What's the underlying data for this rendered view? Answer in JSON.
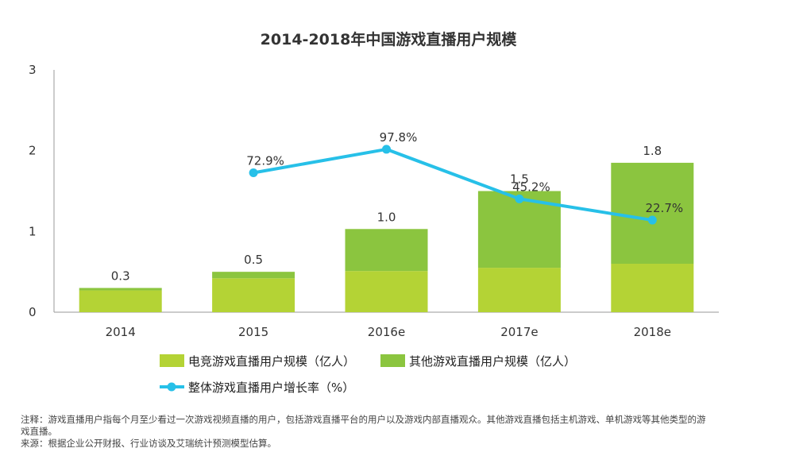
{
  "chart_data": {
    "type": "bar",
    "stacked": true,
    "title": "2014-2018年中国游戏直播用户规模",
    "categories": [
      "2014",
      "2015",
      "2016e",
      "2017e",
      "2018e"
    ],
    "ylim": [
      0,
      3
    ],
    "yticks": [
      "0",
      "1",
      "2",
      "3"
    ],
    "grid": false,
    "series": [
      {
        "name": "电竞游戏直播用户规模（亿人）",
        "type": "bar",
        "color": "#b4d335",
        "values": [
          0.27,
          0.42,
          0.51,
          0.55,
          0.6
        ]
      },
      {
        "name": "其他游戏直播用户规模（亿人）",
        "type": "bar",
        "color": "#8bc53f",
        "values": [
          0.03,
          0.08,
          0.52,
          0.95,
          1.25
        ]
      },
      {
        "name": "整体游戏直播用户增长率（%）",
        "type": "line",
        "color": "#27c0e8",
        "values": [
          null,
          72.9,
          97.8,
          45.2,
          22.7
        ],
        "labels": [
          null,
          "72.9%",
          "97.8%",
          "45.2%",
          "22.7%"
        ]
      }
    ],
    "total_labels": [
      "0.3",
      "0.5",
      "1.0",
      "1.5",
      "1.8"
    ],
    "growth_axis_range": [
      -75,
      182
    ]
  },
  "notes": {
    "line1": "注释：游戏直播用户指每个月至少看过一次游戏视频直播的用户，包括游戏直播平台的用户以及游戏内部直播观众。其他游戏直播包括主机游戏、单机游戏等其他类型的游戏直播。",
    "line2": "来源：根据企业公开财报、行业访谈及艾瑞统计预测模型估算。"
  }
}
